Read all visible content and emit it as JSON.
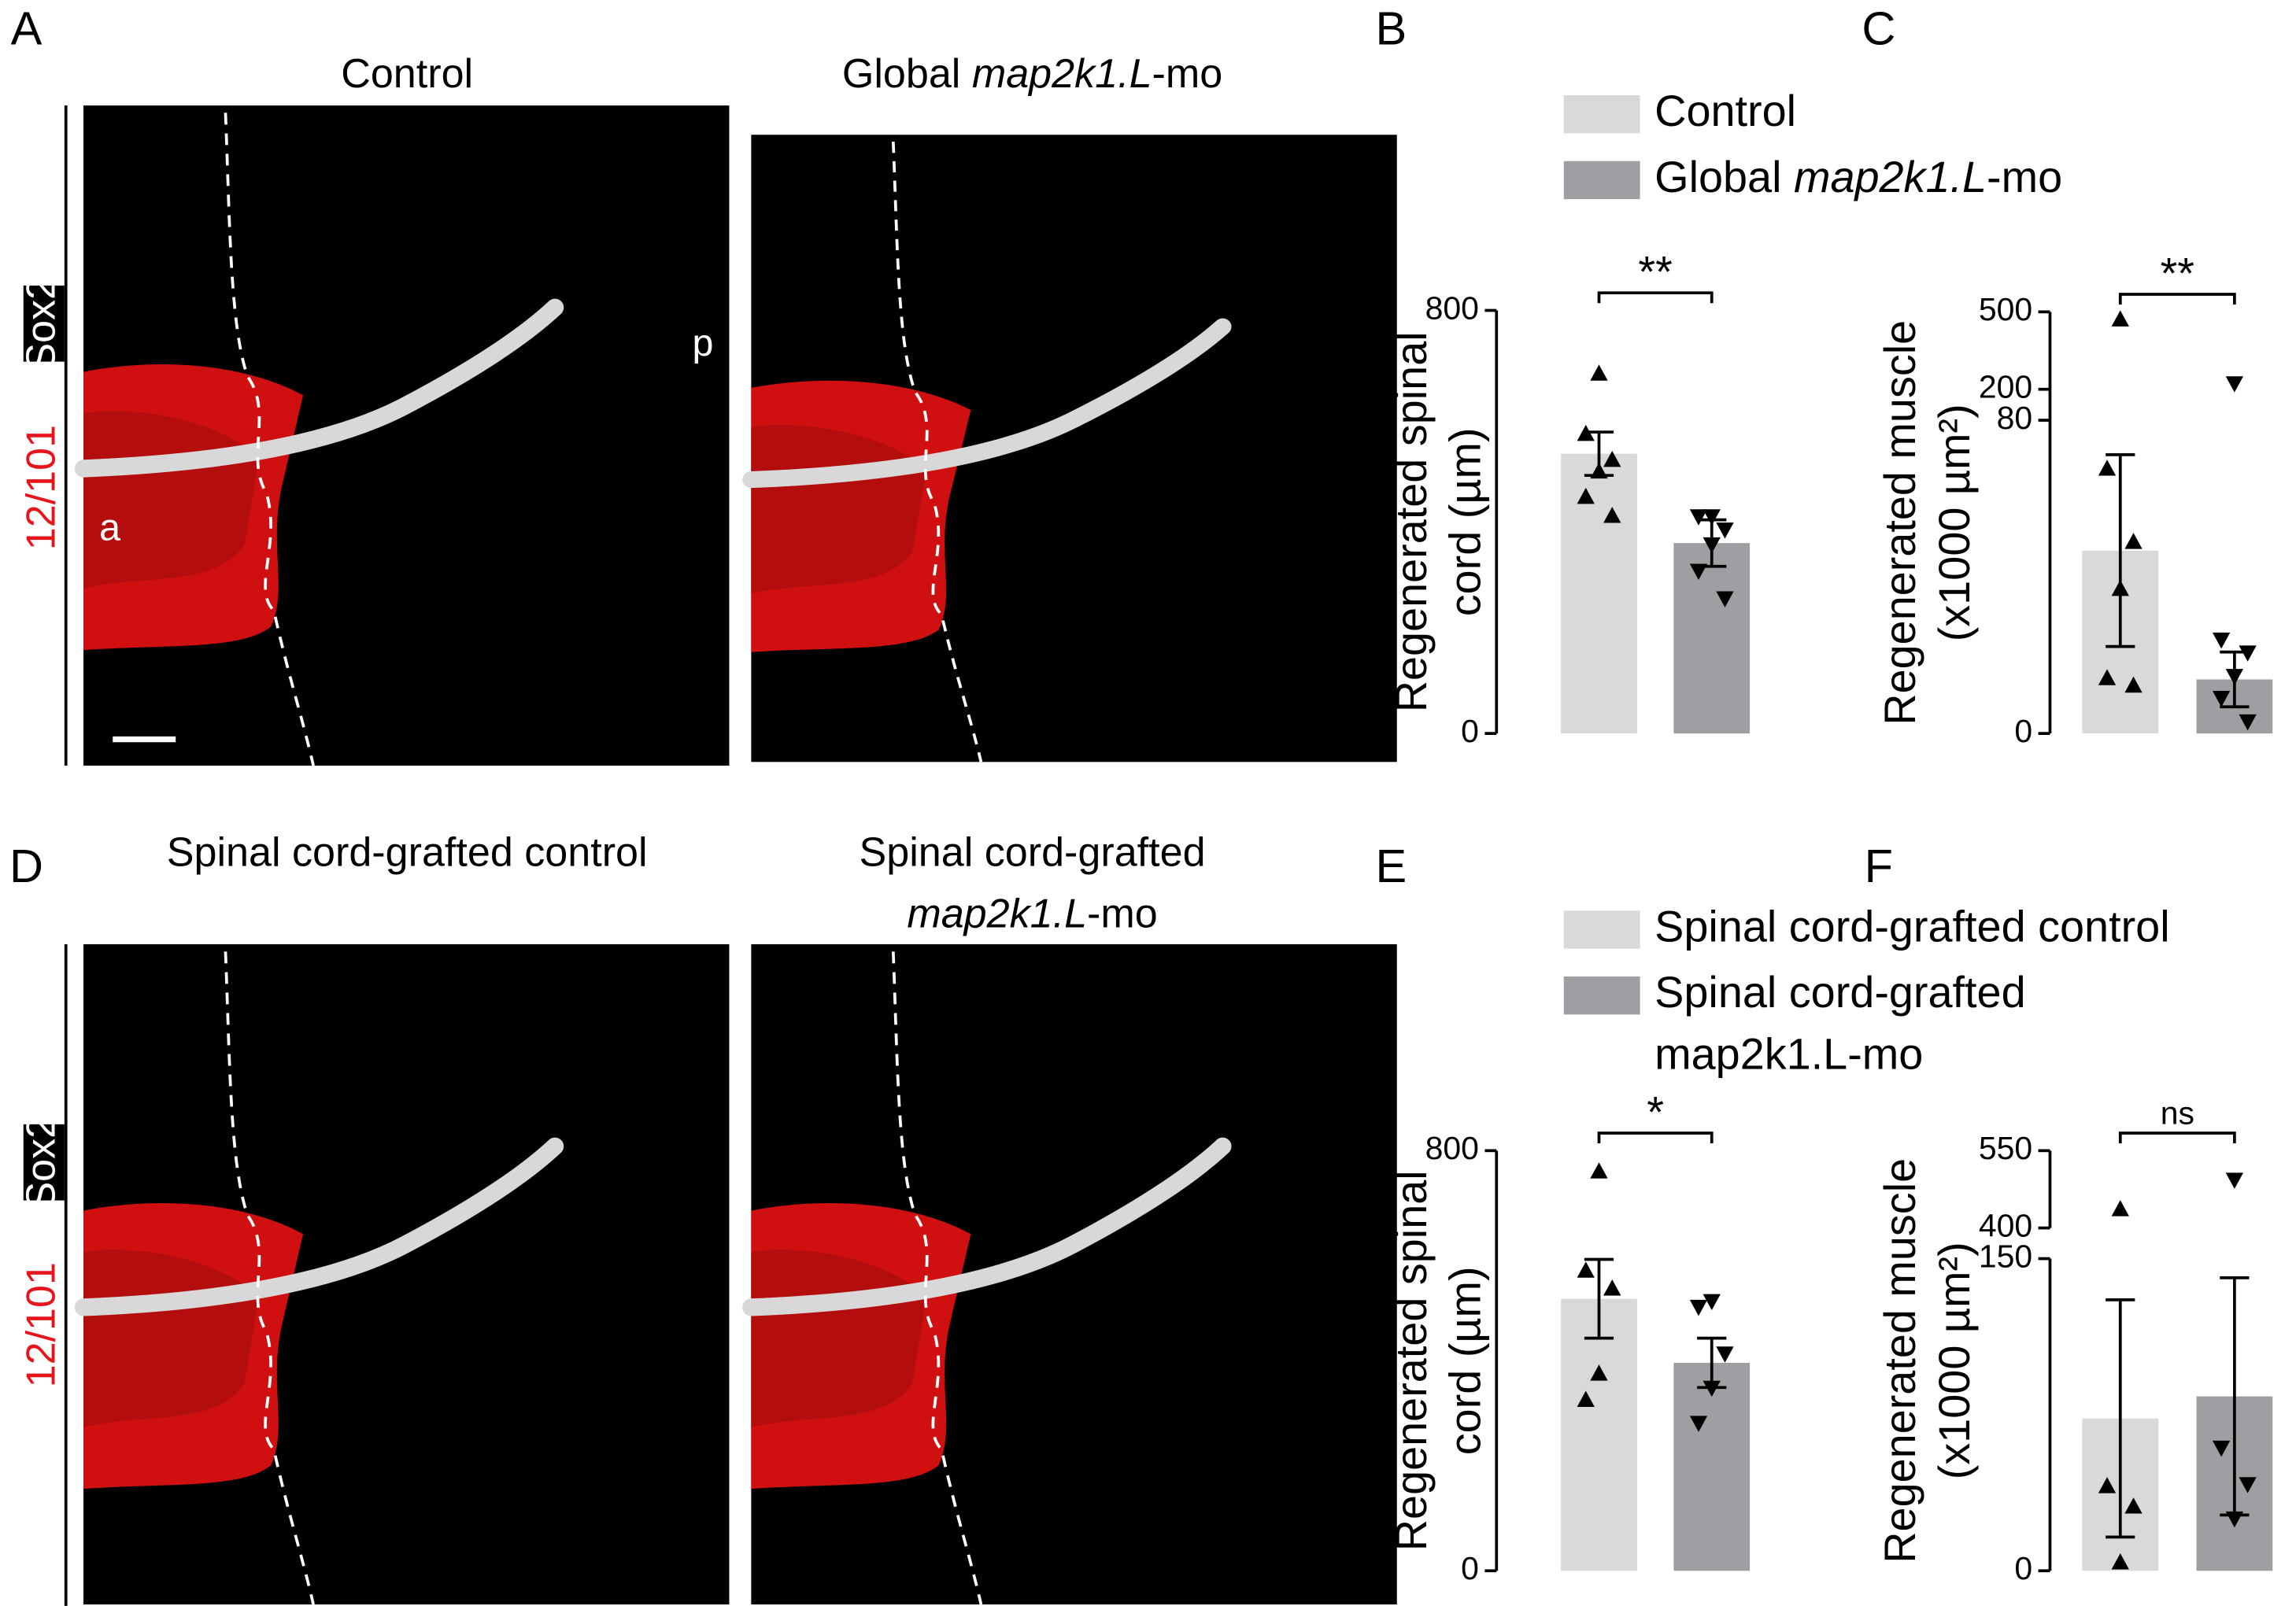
{
  "image_panels": [
    {
      "label": "A",
      "stain_red": "12/101",
      "stain_white": "Sox2",
      "titles": [
        [
          [
            {
              "text": "Control"
            }
          ]
        ],
        [
          [
            {
              "text": "Global "
            },
            {
              "text": "map2k1.L",
              "italic": true
            },
            {
              "text": "-mo"
            }
          ]
        ]
      ],
      "annotations": [
        "a",
        "p"
      ]
    },
    {
      "label": "D",
      "stain_red": "12/101",
      "stain_white": "Sox2",
      "titles": [
        [
          [
            {
              "text": "Spinal cord-grafted control"
            }
          ]
        ],
        [
          [
            {
              "text": "Spinal cord-grafted"
            }
          ],
          [
            {
              "text": "map2k1.L",
              "italic": true
            },
            {
              "text": "-mo"
            }
          ]
        ]
      ]
    }
  ],
  "legends": [
    {
      "entries": [
        {
          "lines": [
            [
              {
                "text": "Control"
              }
            ]
          ],
          "color": "#d9d9d9"
        },
        {
          "lines": [
            [
              {
                "text": "Global "
              },
              {
                "text": "map2k1.L",
                "italic": true
              },
              {
                "text": "-mo"
              }
            ]
          ],
          "color": "#9e9ea3"
        }
      ]
    },
    {
      "entries": [
        {
          "lines": [
            [
              {
                "text": "Spinal cord-grafted control"
              }
            ]
          ],
          "color": "#d9d9d9"
        },
        {
          "lines": [
            [
              {
                "text": "Spinal cord-grafted"
              }
            ],
            [
              {
                "text": "map2k1.L-mo"
              }
            ]
          ],
          "color": "#9e9ea3"
        }
      ]
    }
  ],
  "chart_data": [
    {
      "type": "bar",
      "label": "B",
      "legend": 0,
      "ylabel": [
        "Regenerated spinal",
        "cord (µm)"
      ],
      "values": [
        529,
        360
      ],
      "errors": [
        41,
        44
      ],
      "points": [
        [
          681,
          567,
          518,
          496,
          448,
          412
        ],
        [
          410,
          410,
          385,
          357,
          307,
          255
        ]
      ],
      "point_markers": [
        "triangle-up",
        "triangle-down"
      ],
      "ylim": [
        0,
        800
      ],
      "yticks": [
        0,
        800
      ],
      "significance": "**"
    },
    {
      "type": "bar",
      "label": "C",
      "legend": 0,
      "ylabel": [
        "Regenerated muscle",
        "(x1000 µm²)"
      ],
      "values": [
        46.7,
        13.8
      ],
      "errors": [
        24.5,
        7
      ],
      "points": [
        [
          472,
          67.7,
          49,
          37,
          14.2,
          12.3
        ],
        [
          222,
          23.9,
          20.6,
          14.6,
          9,
          3
        ]
      ],
      "point_markers": [
        "triangle-up",
        "triangle-down"
      ],
      "ylim": [
        0,
        500
      ],
      "yticks": [
        0,
        80,
        200,
        500
      ],
      "ysegments": [
        [
          0,
          80
        ],
        [
          80,
          500
        ]
      ],
      "significance": "**"
    },
    {
      "type": "bar",
      "label": "E",
      "legend": 1,
      "ylabel": [
        "Regenerated spinal",
        "cord (µm)"
      ],
      "values": [
        518,
        396
      ],
      "errors": [
        75,
        47
      ],
      "points": [
        [
          761,
          572,
          538,
          376,
          326
        ],
        [
          513,
          502,
          413,
          348,
          281
        ]
      ],
      "point_markers": [
        "triangle-up",
        "triangle-down"
      ],
      "ylim": [
        0,
        800
      ],
      "yticks": [
        0,
        800
      ],
      "significance": "*"
    },
    {
      "type": "bar",
      "label": "F",
      "legend": 1,
      "ylabel": [
        "Regenerated muscle",
        "(x1000 µm²)"
      ],
      "values": [
        73.2,
        83.8
      ],
      "errors": [
        57,
        57
      ],
      "points": [
        [
          437,
          40.8,
          31,
          4.2
        ],
        [
          493,
          59,
          41.5,
          25
        ]
      ],
      "point_markers": [
        "triangle-up",
        "triangle-down"
      ],
      "ylim": [
        0,
        550
      ],
      "yticks": [
        0,
        150,
        400,
        550
      ],
      "ysegments": [
        [
          0,
          150
        ],
        [
          400,
          550
        ]
      ],
      "significance": "ns"
    }
  ]
}
